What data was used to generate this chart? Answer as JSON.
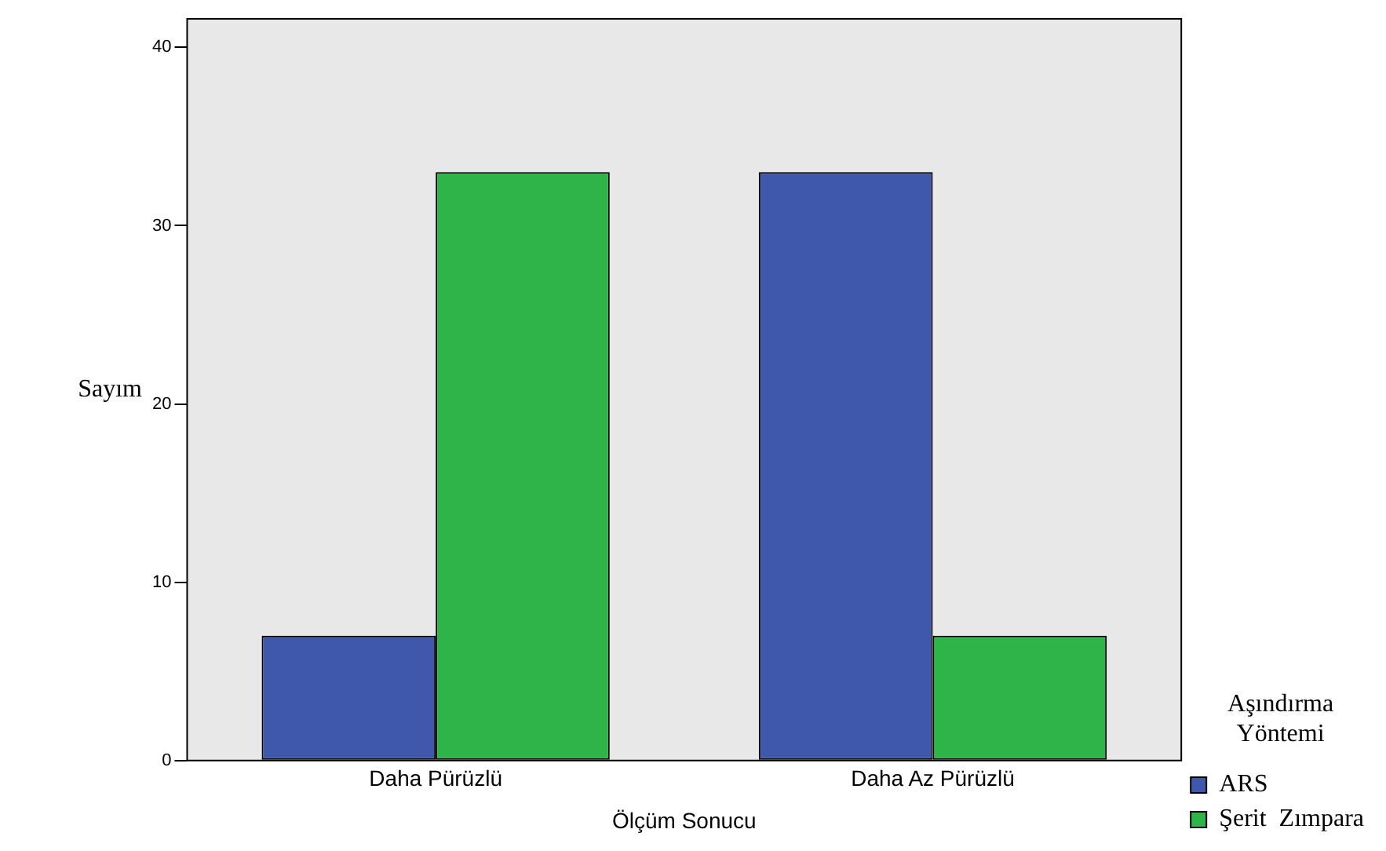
{
  "chart_data": {
    "type": "bar",
    "categories": [
      "Daha Pürüzlü",
      "Daha Az Pürüzlü"
    ],
    "series": [
      {
        "name": "ARS",
        "color": "#3f58ab",
        "values": [
          7,
          33
        ]
      },
      {
        "name": "Şerit  Zımpara",
        "color": "#2fb44a",
        "values": [
          33,
          7
        ]
      }
    ],
    "xlabel": "Ölçüm Sonucu",
    "ylabel": "Sayım",
    "legend_title": "Aşındırma Yöntemi",
    "legend": "right",
    "ylim": [
      0,
      41.6
    ],
    "yticks": [
      0,
      10,
      20,
      30,
      40
    ],
    "grid": false
  }
}
